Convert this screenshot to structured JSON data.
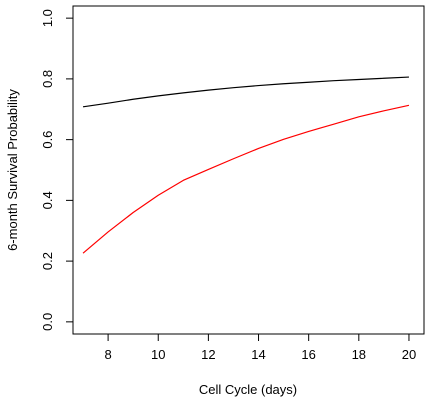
{
  "chart_data": {
    "type": "line",
    "xlabel": "Cell Cycle (days)",
    "ylabel": "6-month Survival Probability",
    "xlim": [
      6.6,
      20.6
    ],
    "ylim": [
      -0.04,
      1.04
    ],
    "x_ticks": [
      8,
      10,
      12,
      14,
      16,
      18,
      20
    ],
    "y_ticks": [
      0.0,
      0.2,
      0.4,
      0.6,
      0.8,
      1.0
    ],
    "x_tick_labels": [
      "8",
      "10",
      "12",
      "14",
      "16",
      "18",
      "20"
    ],
    "y_tick_labels": [
      "0.0",
      "0.2",
      "0.4",
      "0.6",
      "0.8",
      "1.0"
    ],
    "grid": false,
    "series": [
      {
        "color": "#000000",
        "x": [
          7,
          8,
          9,
          10,
          11,
          12,
          13,
          14,
          15,
          16,
          17,
          18,
          19,
          20
        ],
        "y": [
          0.708,
          0.72,
          0.733,
          0.744,
          0.754,
          0.763,
          0.771,
          0.778,
          0.784,
          0.789,
          0.794,
          0.798,
          0.802,
          0.806
        ]
      },
      {
        "color": "#ff0000",
        "x": [
          7,
          8,
          9,
          10,
          11,
          12,
          13,
          14,
          15,
          16,
          17,
          18,
          19,
          20
        ],
        "y": [
          0.226,
          0.296,
          0.36,
          0.417,
          0.466,
          0.502,
          0.537,
          0.571,
          0.601,
          0.627,
          0.651,
          0.675,
          0.695,
          0.713
        ]
      }
    ]
  }
}
